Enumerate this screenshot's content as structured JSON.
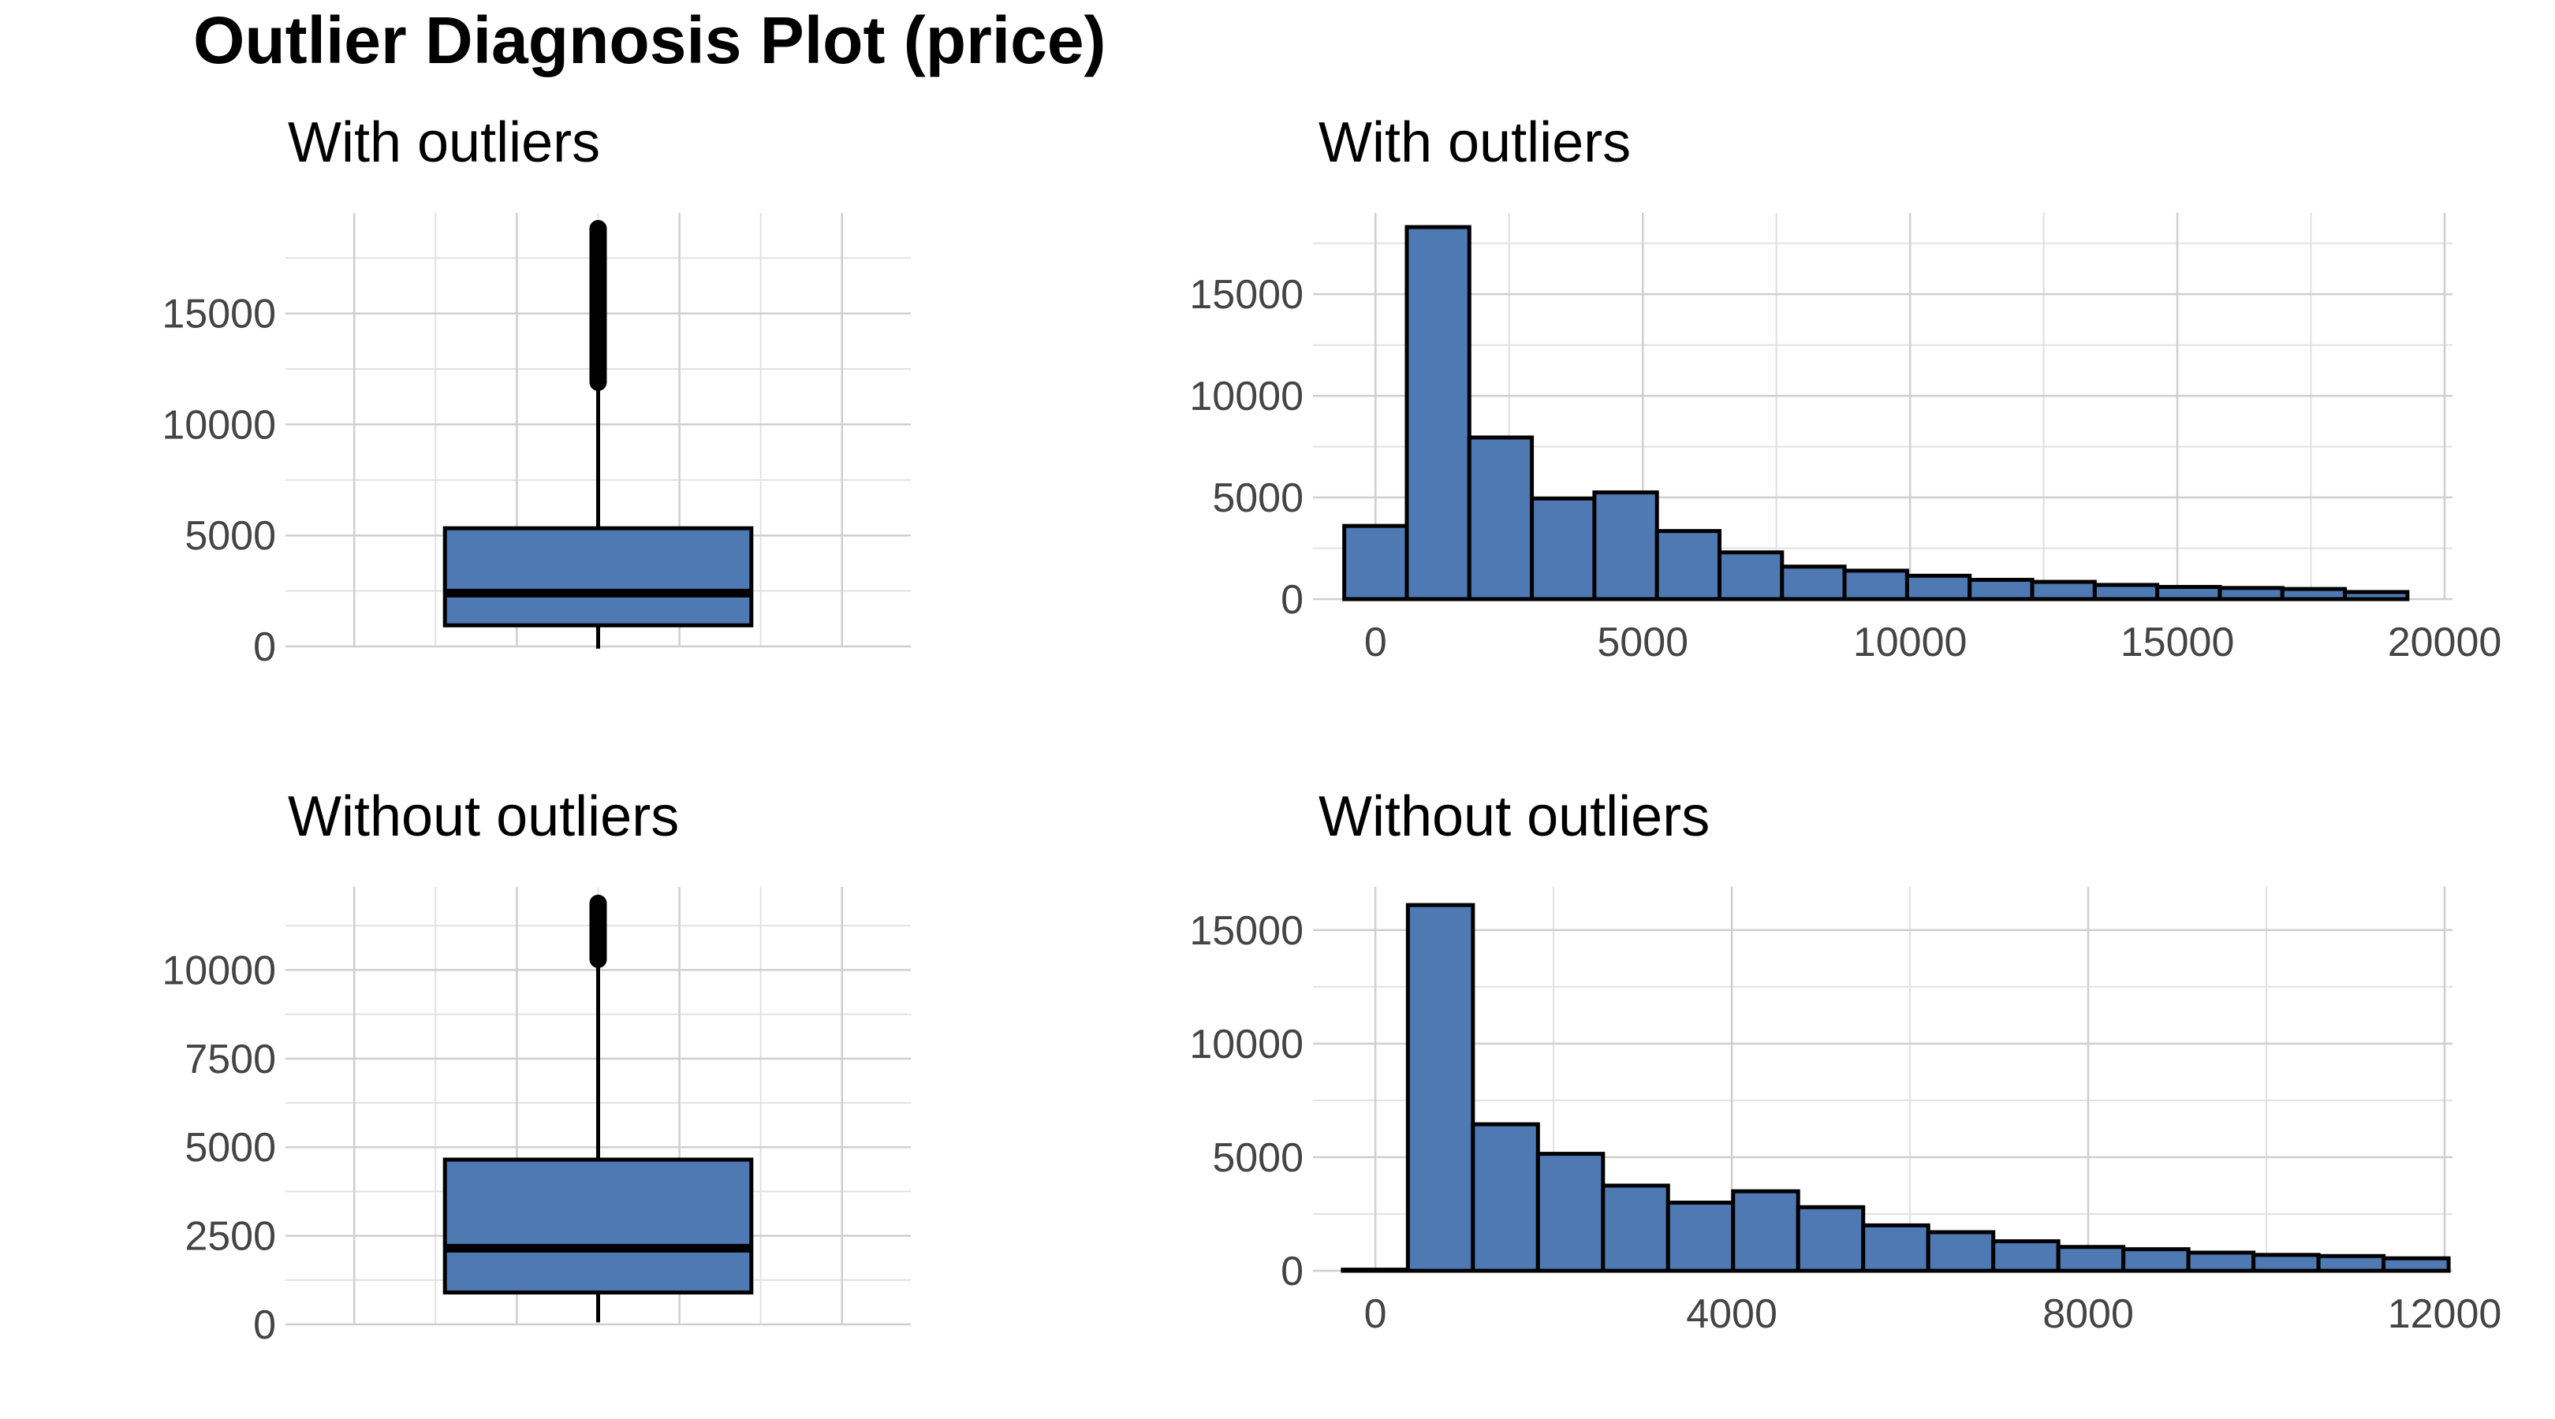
{
  "title": "Outlier Diagnosis Plot (price)",
  "colors": {
    "fill": "#4e79b3",
    "outline": "#000000",
    "grid": "#cfcfcf"
  },
  "chart_data": [
    {
      "type": "box",
      "panel": "top-left",
      "title": "With outliers",
      "ylim": [
        0,
        18823
      ],
      "yticks": [
        0,
        5000,
        10000,
        15000
      ],
      "yticklabels": [
        "0",
        "5000",
        "10000",
        "15000"
      ],
      "box": {
        "min": 326,
        "q1": 950,
        "median": 2401,
        "q3": 5324,
        "whisker_high": 11886
      },
      "outliers": {
        "from": 11900,
        "to": 18823
      }
    },
    {
      "type": "bar",
      "panel": "top-right",
      "title": "With outliers",
      "xlim": [
        -1170,
        20000
      ],
      "xticks": [
        0,
        5000,
        10000,
        15000,
        20000
      ],
      "xticklabels": [
        "0",
        "5000",
        "10000",
        "15000",
        "20000"
      ],
      "yticks": [
        0,
        5000,
        10000,
        15000
      ],
      "yticklabels": [
        "0",
        "5000",
        "10000",
        "15000"
      ],
      "ylim": [
        0,
        19000
      ],
      "bin_width": 1170,
      "bin_starts": [
        -585,
        585,
        1755,
        2925,
        4095,
        5265,
        6435,
        7605,
        8775,
        9945,
        11115,
        12285,
        13455,
        14625,
        15795,
        16965,
        18135
      ],
      "values": [
        3600,
        18300,
        7950,
        4950,
        5250,
        3350,
        2300,
        1600,
        1400,
        1150,
        950,
        850,
        700,
        600,
        550,
        500,
        350
      ]
    },
    {
      "type": "box",
      "panel": "bottom-left",
      "title": "Without outliers",
      "ylim": [
        0,
        11900
      ],
      "yticks": [
        0,
        2500,
        5000,
        7500,
        10000
      ],
      "yticklabels": [
        "0",
        "2500",
        "5000",
        "7500",
        "10000"
      ],
      "box": {
        "min": 326,
        "q1": 900,
        "median": 2150,
        "q3": 4650,
        "whisker_high": 10300
      },
      "outliers": {
        "from": 10300,
        "to": 11880
      }
    },
    {
      "type": "bar",
      "panel": "bottom-right",
      "title": "Without outliers",
      "xlim": [
        -700,
        12000
      ],
      "xticks": [
        0,
        4000,
        8000,
        12000
      ],
      "xticklabels": [
        "0",
        "4000",
        "8000",
        "12000"
      ],
      "yticks": [
        0,
        5000,
        10000,
        15000
      ],
      "yticklabels": [
        "0",
        "5000",
        "10000",
        "15000"
      ],
      "ylim": [
        0,
        16900
      ],
      "bin_width": 730,
      "bin_starts": [
        -365,
        365,
        1095,
        1825,
        2555,
        3285,
        4015,
        4745,
        5475,
        6205,
        6935,
        7665,
        8395,
        9125,
        9855,
        10585,
        11315
      ],
      "values": [
        50,
        16100,
        6450,
        5150,
        3750,
        3000,
        3500,
        2800,
        2000,
        1700,
        1300,
        1050,
        950,
        800,
        700,
        650,
        550
      ]
    }
  ]
}
